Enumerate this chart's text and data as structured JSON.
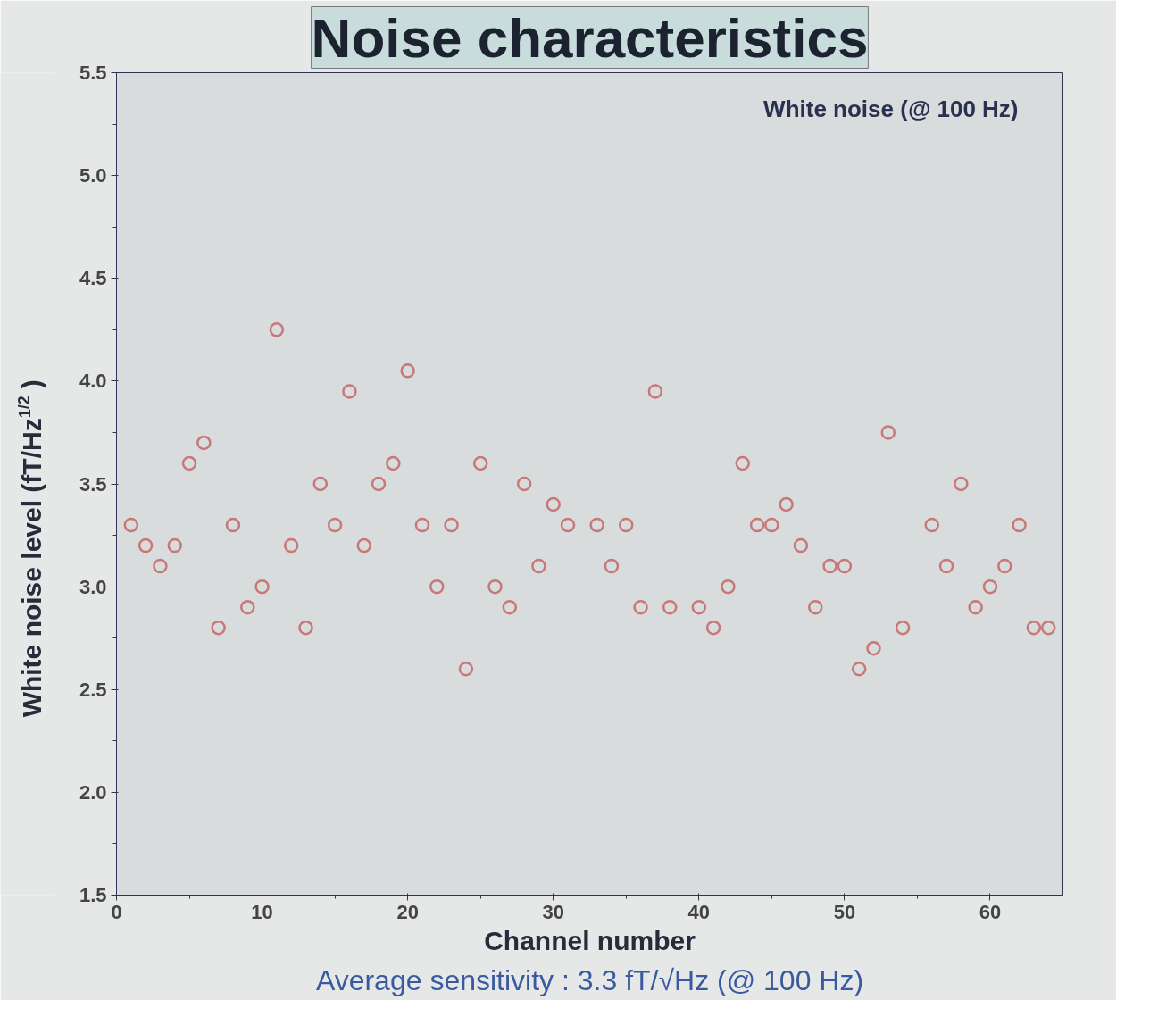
{
  "chart_data": {
    "type": "scatter",
    "title": "Noise characteristics",
    "xlabel": "Channel number",
    "ylabel": "White noise level (fT/Hz$^{1/2}$)",
    "annotations": [
      "White noise (@ 100 Hz)",
      "Average sensitivity : 3.3 fT/√Hz (@ 100 Hz)"
    ],
    "x": [
      1,
      2,
      3,
      4,
      5,
      6,
      7,
      8,
      9,
      10,
      11,
      12,
      13,
      14,
      15,
      16,
      17,
      18,
      19,
      20,
      21,
      22,
      23,
      24,
      25,
      26,
      27,
      28,
      29,
      30,
      31,
      33,
      34,
      35,
      36,
      37,
      38,
      40,
      41,
      42,
      43,
      44,
      45,
      46,
      47,
      48,
      49,
      50,
      51,
      52,
      53,
      54,
      56,
      57,
      58,
      59,
      60,
      61,
      62,
      63,
      64
    ],
    "series": [
      {
        "color": "#c87878",
        "values": [
          3.3,
          3.2,
          3.1,
          3.2,
          3.6,
          3.7,
          2.8,
          3.3,
          2.9,
          3.0,
          4.25,
          3.2,
          2.8,
          3.5,
          3.3,
          3.95,
          3.2,
          3.5,
          3.6,
          4.05,
          3.3,
          3.0,
          3.3,
          2.6,
          3.6,
          3.0,
          2.9,
          3.5,
          3.1,
          3.4,
          3.3,
          3.3,
          3.1,
          3.3,
          2.9,
          3.95,
          2.9,
          2.9,
          2.8,
          3.0,
          3.6,
          3.3,
          3.3,
          3.4,
          3.2,
          2.9,
          3.1,
          3.1,
          2.6,
          2.7,
          3.75,
          2.8,
          3.3,
          3.1,
          3.5,
          2.9,
          3.0,
          3.1,
          3.3,
          2.8,
          2.8
        ]
      }
    ],
    "xlim": [
      0,
      65
    ],
    "ylim": [
      1.5,
      5.5
    ],
    "xticks": [
      0,
      10,
      20,
      30,
      40,
      50,
      60
    ],
    "yticks": [
      {
        "value": 1.5,
        "label": "1.5"
      },
      {
        "value": 2.0,
        "label": "2.0"
      },
      {
        "value": 2.5,
        "label": "2.5"
      },
      {
        "value": 3.0,
        "label": "3.0"
      },
      {
        "value": 3.5,
        "label": "3.5"
      },
      {
        "value": 4.0,
        "label": "4.0"
      },
      {
        "value": 4.5,
        "label": "4.5"
      },
      {
        "value": 5.0,
        "label": "5.0"
      },
      {
        "value": 5.5,
        "label": "5.5"
      }
    ],
    "marker": "circle",
    "grid": false
  }
}
